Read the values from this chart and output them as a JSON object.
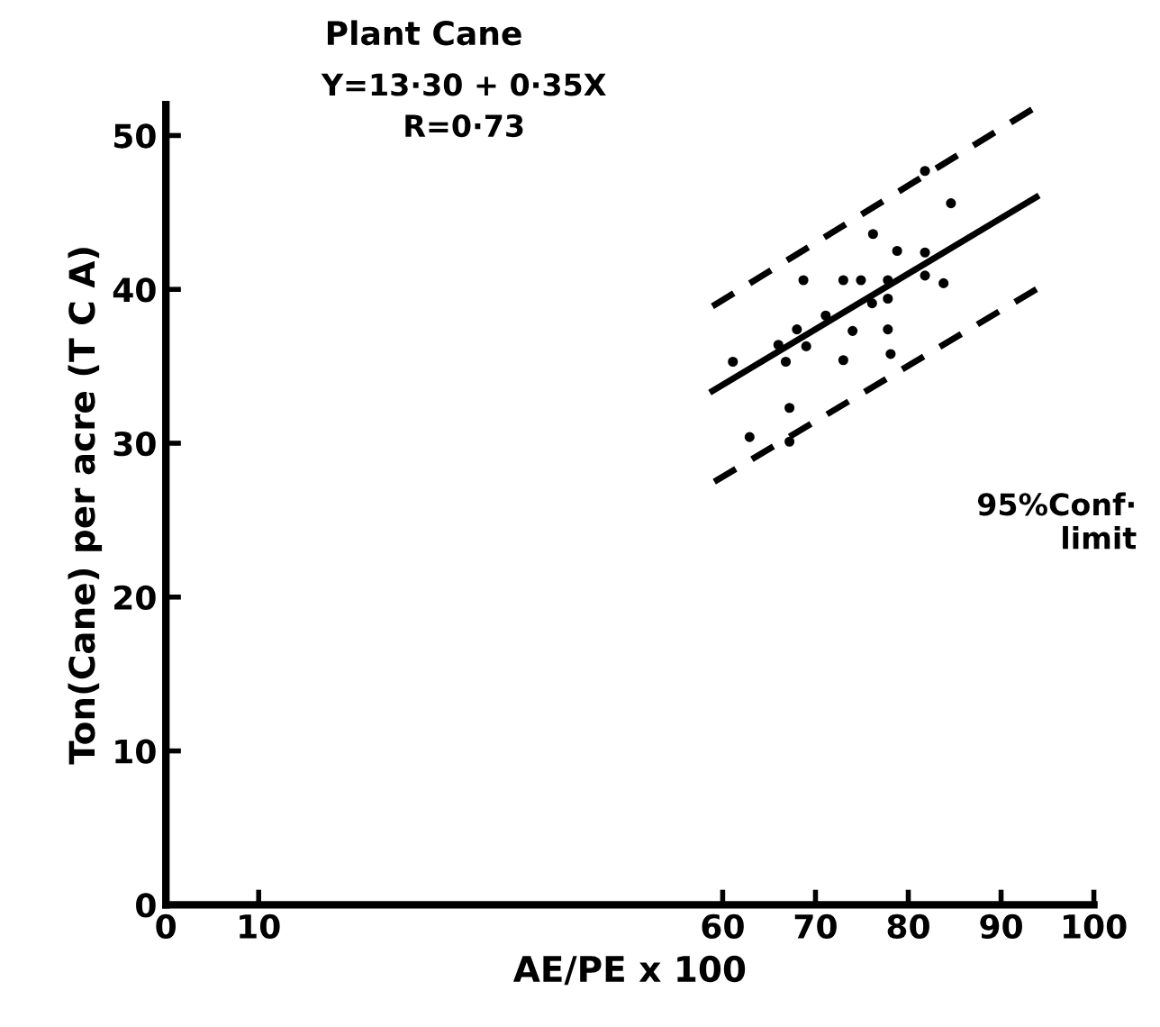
{
  "chart_data": {
    "type": "scatter",
    "title": "Plant Cane",
    "xlabel": "AE/PE x 100",
    "ylabel": "Ton(Cane) per acre (T C A)",
    "xlim": [
      0,
      100
    ],
    "xticks": [
      0,
      10,
      60,
      70,
      80,
      90,
      100
    ],
    "ylim": [
      0,
      52
    ],
    "yticks": [
      0,
      10,
      20,
      30,
      40,
      50
    ],
    "grid": false,
    "legend": false,
    "marker": "circle",
    "annotations": [
      "Y=13·30 + 0·35X",
      "R=0·73",
      "95%Conf·\nlimit"
    ],
    "series": [
      {
        "color": "#000000",
        "x": [
          61.1,
          66.0,
          66.8,
          68.0,
          68.7,
          69.0,
          71.1,
          73.0,
          73.0,
          74.0,
          74.9,
          76.1,
          76.2,
          77.8,
          77.8,
          77.8,
          78.1,
          78.8,
          81.8,
          81.8,
          81.8,
          83.8,
          84.6,
          67.2,
          62.9,
          67.2
        ],
        "values": [
          35.3,
          36.4,
          35.3,
          37.4,
          40.6,
          36.3,
          38.3,
          40.6,
          35.4,
          37.3,
          40.6,
          39.1,
          43.6,
          40.6,
          39.4,
          37.4,
          35.8,
          42.5,
          47.7,
          42.4,
          40.9,
          40.4,
          45.6,
          32.3,
          30.4,
          30.1
        ]
      },
      {
        "type": "line",
        "color": "#000000",
        "line_style": "solid",
        "marker": "none",
        "x": [
          58.9,
          93.8
        ],
        "values": [
          33.4,
          46.0
        ]
      },
      {
        "type": "line",
        "color": "#000000",
        "line_style": "dashed",
        "marker": "none",
        "x": [
          58.9,
          93.6
        ],
        "values": [
          38.9,
          51.8
        ]
      },
      {
        "type": "line",
        "color": "#000000",
        "line_style": "dashed",
        "marker": "none",
        "x": [
          59.1,
          94.6
        ],
        "values": [
          27.5,
          40.3
        ]
      }
    ]
  }
}
